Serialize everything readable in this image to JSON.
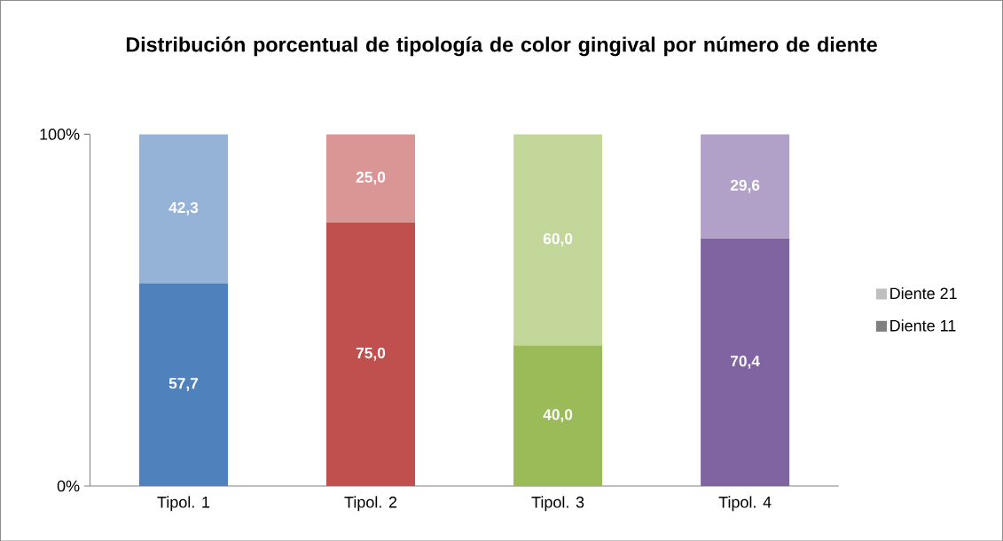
{
  "chart_data": {
    "type": "bar",
    "title": "Distribución porcentual de tipología de color gingival por número de diente",
    "stacked": true,
    "categories": [
      "Tipol. 1",
      "Tipol. 2",
      "Tipol. 3",
      "Tipol. 4"
    ],
    "ylim": [
      0,
      100
    ],
    "yticks": [
      {
        "value": 0,
        "label": "0%"
      },
      {
        "value": 100,
        "label": "100%"
      }
    ],
    "legend": "right",
    "series": [
      {
        "name": "Diente 11",
        "color": "#808080",
        "colors": [
          "#4f81bd",
          "#c0504d",
          "#9bbb59",
          "#8064a2"
        ],
        "values": [
          57.7,
          75.0,
          40.0,
          70.4
        ],
        "value_labels": [
          "57,7",
          "75,0",
          "40,0",
          "70,4"
        ]
      },
      {
        "name": "Diente 21",
        "color": "#bfbfbf",
        "colors": [
          "#95b3d7",
          "#da9694",
          "#c4d79b",
          "#b1a0c7"
        ],
        "values": [
          42.3,
          25.0,
          60.0,
          29.6
        ],
        "value_labels": [
          "42,3",
          "25,0",
          "60,0",
          "29,6"
        ]
      }
    ]
  }
}
